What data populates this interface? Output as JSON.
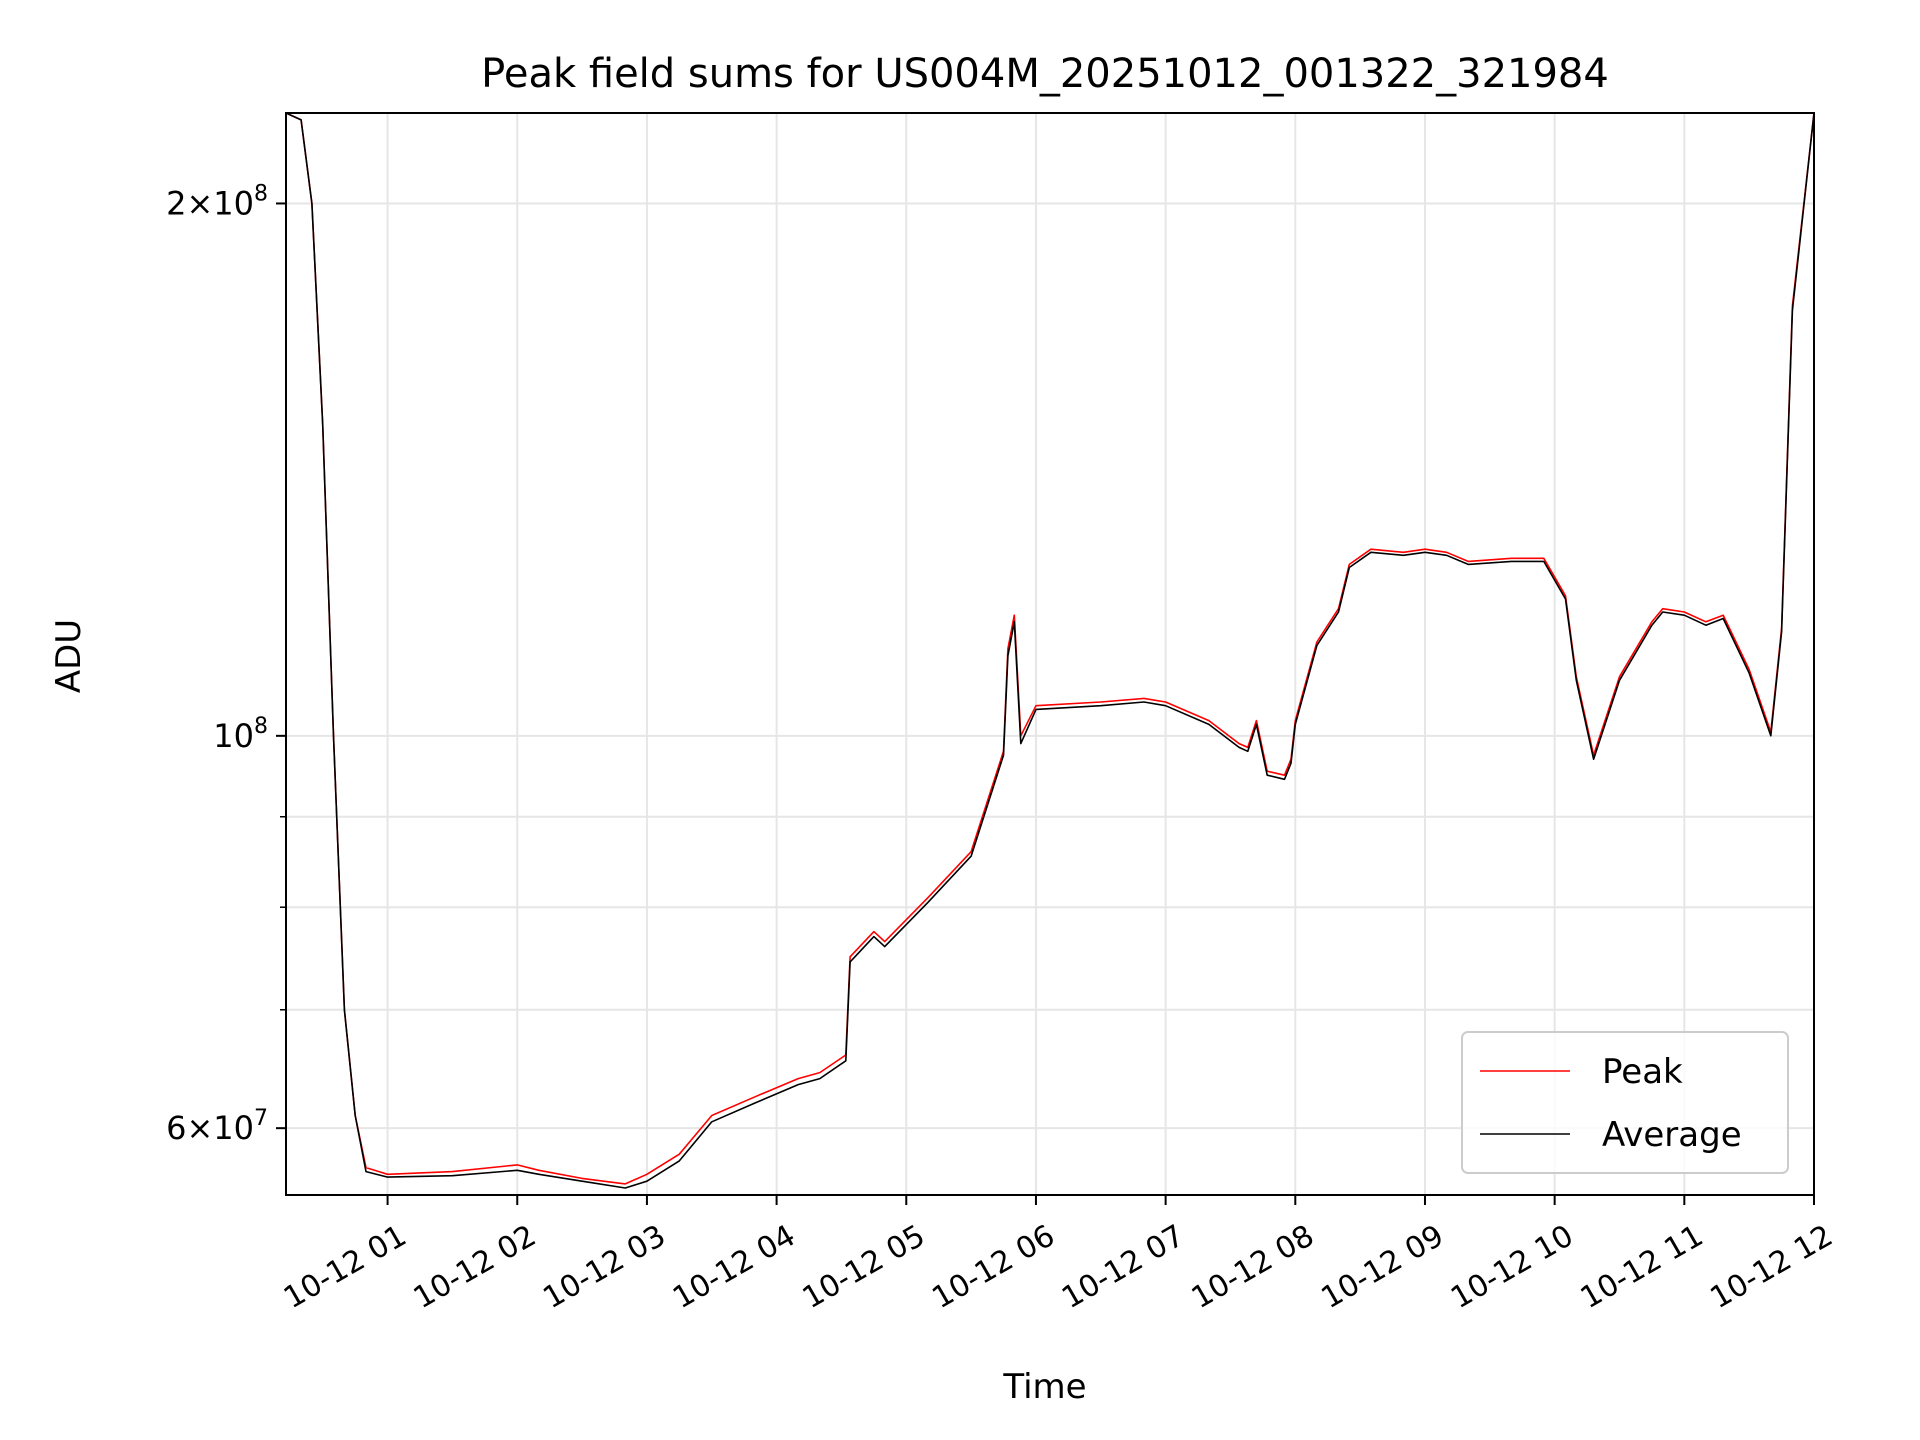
{
  "chart_data": {
    "type": "line",
    "title": "Peak field sums for US004M_20251012_001322_321984",
    "xlabel": "Time",
    "ylabel": "ADU",
    "yscale": "log",
    "ylim": [
      55000000,
      225000000
    ],
    "xlim": [
      "2025-10-12 00:13",
      "2025-10-12 12:00"
    ],
    "x_ticks": [
      "10-12 01",
      "10-12 02",
      "10-12 03",
      "10-12 04",
      "10-12 05",
      "10-12 06",
      "10-12 07",
      "10-12 08",
      "10-12 09",
      "10-12 10",
      "10-12 11",
      "10-12 12"
    ],
    "y_ticks": [
      "2 × 10^8",
      "10^8",
      "6 × 10^7"
    ],
    "y_tick_labels": [
      {
        "coef": "2",
        "exp": "8"
      },
      {
        "coef": "",
        "exp": "8"
      },
      {
        "coef": "6",
        "exp": "7"
      }
    ],
    "grid": true,
    "legend_position": "lower-right",
    "series": [
      {
        "name": "Peak",
        "color": "#ff0000",
        "x": [
          "2025-10-12 00:13",
          "2025-10-12 00:20",
          "2025-10-12 00:25",
          "2025-10-12 00:30",
          "2025-10-12 00:35",
          "2025-10-12 00:40",
          "2025-10-12 00:45",
          "2025-10-12 00:50",
          "2025-10-12 01:00",
          "2025-10-12 01:30",
          "2025-10-12 02:00",
          "2025-10-12 02:10",
          "2025-10-12 02:30",
          "2025-10-12 02:50",
          "2025-10-12 03:00",
          "2025-10-12 03:15",
          "2025-10-12 03:30",
          "2025-10-12 03:50",
          "2025-10-12 04:10",
          "2025-10-12 04:20",
          "2025-10-12 04:32",
          "2025-10-12 04:34",
          "2025-10-12 04:45",
          "2025-10-12 04:50",
          "2025-10-12 05:10",
          "2025-10-12 05:30",
          "2025-10-12 05:45",
          "2025-10-12 05:47",
          "2025-10-12 05:50",
          "2025-10-12 05:53",
          "2025-10-12 06:00",
          "2025-10-12 06:30",
          "2025-10-12 06:50",
          "2025-10-12 07:00",
          "2025-10-12 07:20",
          "2025-10-12 07:34",
          "2025-10-12 07:38",
          "2025-10-12 07:42",
          "2025-10-12 07:47",
          "2025-10-12 07:55",
          "2025-10-12 07:58",
          "2025-10-12 08:00",
          "2025-10-12 08:10",
          "2025-10-12 08:20",
          "2025-10-12 08:25",
          "2025-10-12 08:35",
          "2025-10-12 08:50",
          "2025-10-12 09:00",
          "2025-10-12 09:10",
          "2025-10-12 09:20",
          "2025-10-12 09:40",
          "2025-10-12 09:55",
          "2025-10-12 10:05",
          "2025-10-12 10:10",
          "2025-10-12 10:18",
          "2025-10-12 10:30",
          "2025-10-12 10:45",
          "2025-10-12 10:50",
          "2025-10-12 11:00",
          "2025-10-12 11:10",
          "2025-10-12 11:18",
          "2025-10-12 11:30",
          "2025-10-12 11:40",
          "2025-10-12 11:45",
          "2025-10-12 11:50",
          "2025-10-12 12:00"
        ],
        "values": [
          225000000,
          223000000,
          200000000,
          150000000,
          100000000,
          70000000,
          61000000,
          57000000,
          56500000,
          56700000,
          57200000,
          56800000,
          56200000,
          55800000,
          56500000,
          58000000,
          61000000,
          62500000,
          64000000,
          64500000,
          66000000,
          75000000,
          77500000,
          76500000,
          81000000,
          86000000,
          98000000,
          112000000,
          117000000,
          100000000,
          104000000,
          104500000,
          105000000,
          104500000,
          102000000,
          99000000,
          98500000,
          102000000,
          95500000,
          95000000,
          97000000,
          102000000,
          113000000,
          118000000,
          125000000,
          127500000,
          127000000,
          127500000,
          127000000,
          125500000,
          126000000,
          126000000,
          120000000,
          108000000,
          97500000,
          108000000,
          116000000,
          118000000,
          117500000,
          116000000,
          117000000,
          109000000,
          100500000,
          115000000,
          175000000,
          225000000
        ]
      },
      {
        "name": "Average",
        "color": "#000000",
        "x": [
          "2025-10-12 00:13",
          "2025-10-12 00:20",
          "2025-10-12 00:25",
          "2025-10-12 00:30",
          "2025-10-12 00:35",
          "2025-10-12 00:40",
          "2025-10-12 00:45",
          "2025-10-12 00:50",
          "2025-10-12 01:00",
          "2025-10-12 01:30",
          "2025-10-12 02:00",
          "2025-10-12 02:10",
          "2025-10-12 02:30",
          "2025-10-12 02:50",
          "2025-10-12 03:00",
          "2025-10-12 03:15",
          "2025-10-12 03:30",
          "2025-10-12 03:50",
          "2025-10-12 04:10",
          "2025-10-12 04:20",
          "2025-10-12 04:32",
          "2025-10-12 04:34",
          "2025-10-12 04:45",
          "2025-10-12 04:50",
          "2025-10-12 05:10",
          "2025-10-12 05:30",
          "2025-10-12 05:45",
          "2025-10-12 05:47",
          "2025-10-12 05:50",
          "2025-10-12 05:53",
          "2025-10-12 06:00",
          "2025-10-12 06:30",
          "2025-10-12 06:50",
          "2025-10-12 07:00",
          "2025-10-12 07:20",
          "2025-10-12 07:34",
          "2025-10-12 07:38",
          "2025-10-12 07:42",
          "2025-10-12 07:47",
          "2025-10-12 07:55",
          "2025-10-12 07:58",
          "2025-10-12 08:00",
          "2025-10-12 08:10",
          "2025-10-12 08:20",
          "2025-10-12 08:25",
          "2025-10-12 08:35",
          "2025-10-12 08:50",
          "2025-10-12 09:00",
          "2025-10-12 09:10",
          "2025-10-12 09:20",
          "2025-10-12 09:40",
          "2025-10-12 09:55",
          "2025-10-12 10:05",
          "2025-10-12 10:10",
          "2025-10-12 10:18",
          "2025-10-12 10:30",
          "2025-10-12 10:45",
          "2025-10-12 10:50",
          "2025-10-12 11:00",
          "2025-10-12 11:10",
          "2025-10-12 11:18",
          "2025-10-12 11:30",
          "2025-10-12 11:40",
          "2025-10-12 11:45",
          "2025-10-12 11:50",
          "2025-10-12 12:00"
        ],
        "values": [
          225000000,
          223000000,
          200000000,
          150000000,
          100000000,
          70000000,
          61000000,
          56700000,
          56300000,
          56400000,
          56800000,
          56500000,
          56000000,
          55500000,
          56000000,
          57500000,
          60500000,
          62000000,
          63500000,
          64000000,
          65500000,
          74500000,
          77000000,
          76000000,
          80500000,
          85500000,
          97500000,
          111000000,
          116000000,
          99000000,
          103500000,
          104000000,
          104500000,
          104000000,
          101500000,
          98500000,
          98000000,
          101500000,
          95000000,
          94500000,
          96500000,
          101500000,
          112500000,
          117500000,
          124500000,
          127000000,
          126500000,
          127000000,
          126500000,
          125000000,
          125500000,
          125500000,
          119500000,
          107500000,
          97000000,
          107500000,
          115500000,
          117500000,
          117000000,
          115500000,
          116500000,
          108500000,
          100000000,
          114500000,
          174000000,
          225000000
        ]
      }
    ]
  }
}
